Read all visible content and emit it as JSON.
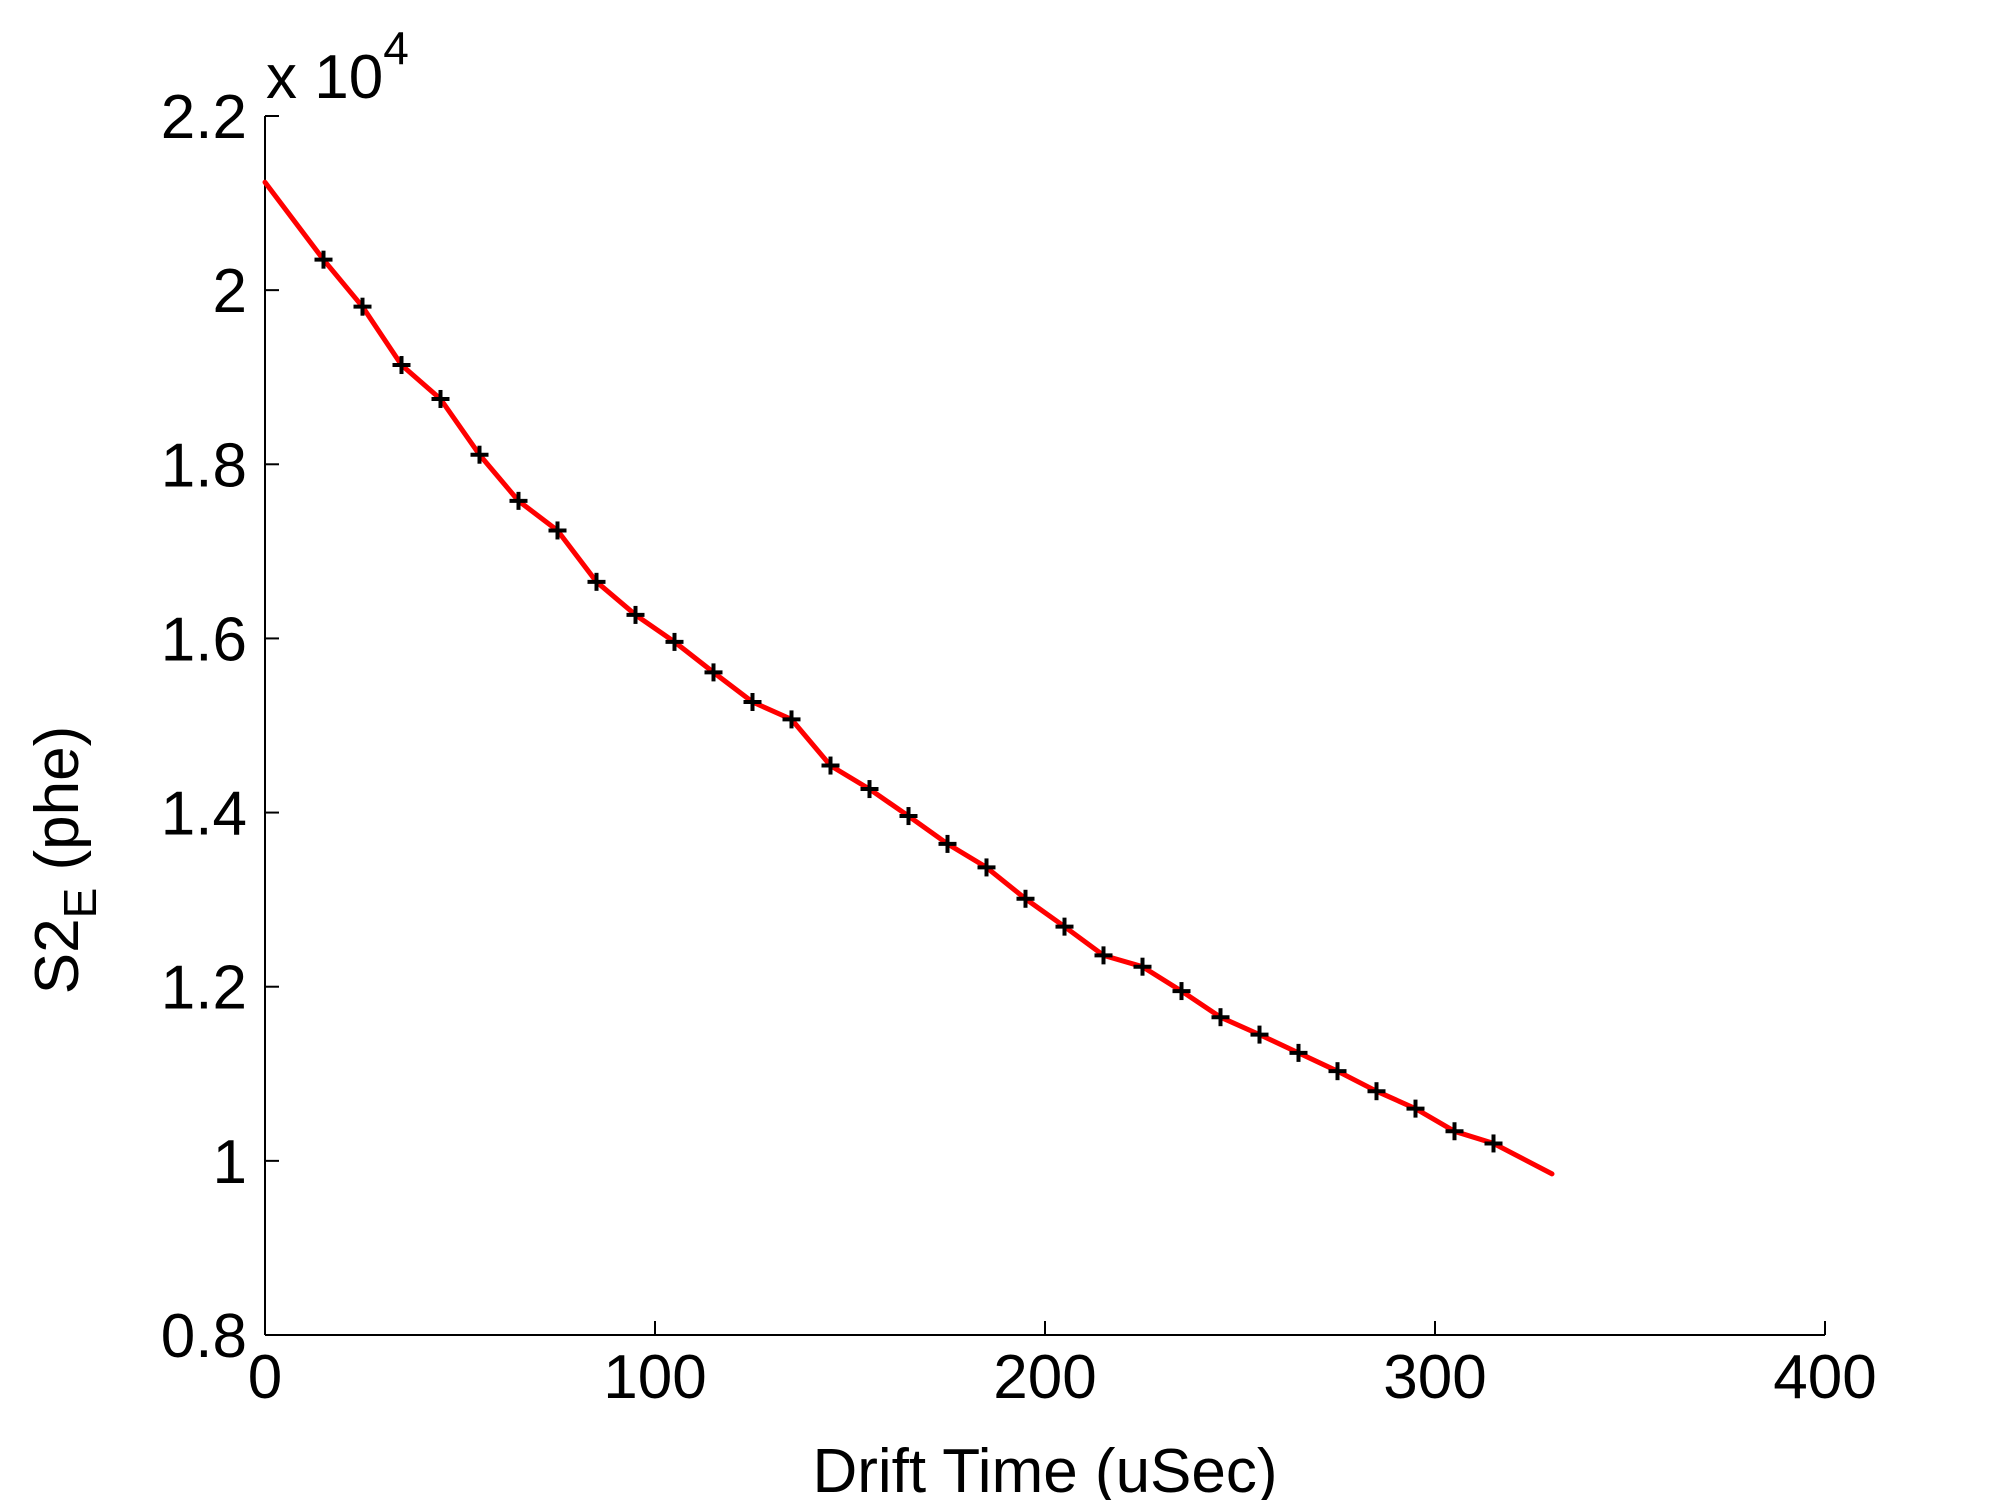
{
  "chart_data": {
    "type": "line",
    "xlabel": "Drift Time (uSec)",
    "ylabel_main": "S2",
    "ylabel_subscript": "E",
    "ylabel_unit": " (phe)",
    "multiplier_base": "x 10",
    "multiplier_exponent": "4",
    "xlim": [
      0,
      400
    ],
    "ylim": [
      0.8,
      2.2
    ],
    "x_ticks": [
      0,
      100,
      200,
      300,
      400
    ],
    "x_tick_labels": [
      "0",
      "100",
      "200",
      "300",
      "400"
    ],
    "y_ticks": [
      0.8,
      1.0,
      1.2,
      1.4,
      1.6,
      1.8,
      2.0,
      2.2
    ],
    "y_tick_labels": [
      "0.8",
      "1",
      "1.2",
      "1.4",
      "1.6",
      "1.8",
      "2",
      "2.2"
    ],
    "grid": false,
    "series": [
      {
        "style": "markers",
        "marker": "+",
        "color": "#000000",
        "x": [
          15,
          25,
          35,
          45,
          55,
          65,
          75,
          85,
          95,
          105,
          115,
          125,
          135,
          145,
          155,
          165,
          175,
          185,
          195,
          205,
          215,
          225,
          235,
          245,
          255,
          265,
          275,
          285,
          295,
          305,
          315
        ],
        "y": [
          2.035,
          1.981,
          1.914,
          1.875,
          1.811,
          1.758,
          1.724,
          1.665,
          1.627,
          1.596,
          1.561,
          1.527,
          1.507,
          1.454,
          1.427,
          1.396,
          1.364,
          1.337,
          1.301,
          1.269,
          1.236,
          1.223,
          1.195,
          1.165,
          1.145,
          1.124,
          1.103,
          1.08,
          1.06,
          1.034,
          1.02
        ]
      },
      {
        "style": "line",
        "color": "#ff0000",
        "x": [
          0,
          15,
          25,
          35,
          45,
          55,
          65,
          75,
          85,
          95,
          105,
          115,
          125,
          135,
          145,
          155,
          165,
          175,
          185,
          195,
          205,
          215,
          225,
          235,
          245,
          255,
          265,
          275,
          285,
          295,
          305,
          315,
          330
        ],
        "y": [
          2.124,
          2.035,
          1.981,
          1.914,
          1.875,
          1.811,
          1.758,
          1.724,
          1.665,
          1.627,
          1.596,
          1.561,
          1.527,
          1.507,
          1.454,
          1.427,
          1.396,
          1.364,
          1.337,
          1.301,
          1.269,
          1.236,
          1.223,
          1.195,
          1.165,
          1.145,
          1.124,
          1.103,
          1.08,
          1.06,
          1.034,
          1.02,
          0.985
        ]
      }
    ]
  }
}
